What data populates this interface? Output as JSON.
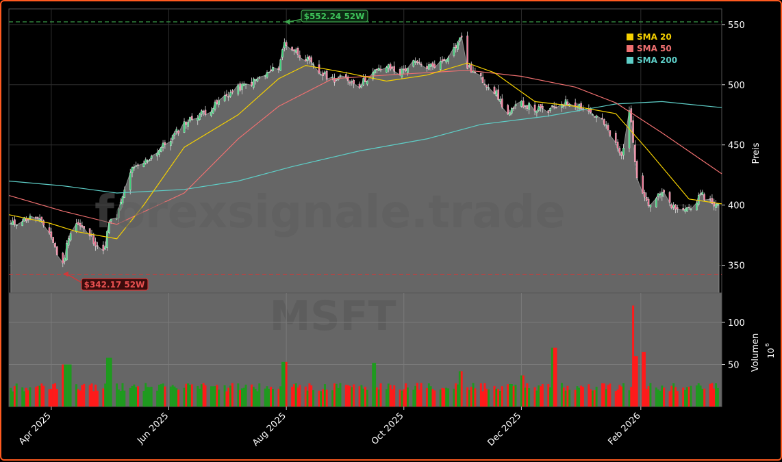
{
  "chart_data": {
    "type": "candlestick",
    "ticker": "MSFT",
    "watermark": "forexsignale.trade",
    "ylabel_price": "Preis",
    "ylabel_volume": "Volumen",
    "volume_exponent_base": "10",
    "volume_exponent": "6",
    "price_range": [
      327,
      563
    ],
    "price_ticks": [
      350,
      400,
      450,
      500,
      550
    ],
    "volume_range": [
      0,
      135
    ],
    "volume_ticks": [
      50,
      100
    ],
    "date_range": [
      "2025-03-10",
      "2026-03-15"
    ],
    "x_ticks": [
      {
        "date": "2025-04-01",
        "label": "Apr 2025"
      },
      {
        "date": "2025-06-01",
        "label": "Jun 2025"
      },
      {
        "date": "2025-08-01",
        "label": "Aug 2025"
      },
      {
        "date": "2025-10-01",
        "label": "Oct 2025"
      },
      {
        "date": "2025-12-01",
        "label": "Dec 2025"
      },
      {
        "date": "2026-02-01",
        "label": "Feb 2026"
      }
    ],
    "high_52w": {
      "value": 552.24,
      "label": "$552.24 52W",
      "date": "2025-07-31"
    },
    "low_52w": {
      "value": 342.17,
      "label": "$342.17 52W",
      "date": "2025-04-07"
    },
    "legend": [
      {
        "label": "SMA 20",
        "color": "#f5d000"
      },
      {
        "label": "SMA 50",
        "color": "#f07070"
      },
      {
        "label": "SMA 200",
        "color": "#5ecfc8"
      }
    ],
    "close_path": [
      [
        "2025-03-10",
        383
      ],
      [
        "2025-03-17",
        388
      ],
      [
        "2025-03-24",
        390
      ],
      [
        "2025-03-31",
        378
      ],
      [
        "2025-04-04",
        360
      ],
      [
        "2025-04-07",
        350
      ],
      [
        "2025-04-10",
        375
      ],
      [
        "2025-04-14",
        385
      ],
      [
        "2025-04-21",
        375
      ],
      [
        "2025-04-28",
        360
      ],
      [
        "2025-05-01",
        385
      ],
      [
        "2025-05-05",
        390
      ],
      [
        "2025-05-12",
        428
      ],
      [
        "2025-05-19",
        435
      ],
      [
        "2025-05-26",
        445
      ],
      [
        "2025-06-02",
        455
      ],
      [
        "2025-06-09",
        468
      ],
      [
        "2025-06-16",
        475
      ],
      [
        "2025-06-23",
        480
      ],
      [
        "2025-06-30",
        490
      ],
      [
        "2025-07-07",
        497
      ],
      [
        "2025-07-14",
        502
      ],
      [
        "2025-07-21",
        508
      ],
      [
        "2025-07-28",
        515
      ],
      [
        "2025-07-31",
        535
      ],
      [
        "2025-08-04",
        530
      ],
      [
        "2025-08-11",
        522
      ],
      [
        "2025-08-18",
        510
      ],
      [
        "2025-08-25",
        505
      ],
      [
        "2025-09-01",
        505
      ],
      [
        "2025-09-08",
        500
      ],
      [
        "2025-09-15",
        510
      ],
      [
        "2025-09-22",
        515
      ],
      [
        "2025-09-29",
        510
      ],
      [
        "2025-10-06",
        518
      ],
      [
        "2025-10-13",
        515
      ],
      [
        "2025-10-20",
        518
      ],
      [
        "2025-10-27",
        530
      ],
      [
        "2025-10-31",
        540
      ],
      [
        "2025-11-03",
        515
      ],
      [
        "2025-11-10",
        505
      ],
      [
        "2025-11-17",
        495
      ],
      [
        "2025-11-24",
        475
      ],
      [
        "2025-12-01",
        485
      ],
      [
        "2025-12-08",
        480
      ],
      [
        "2025-12-15",
        478
      ],
      [
        "2025-12-22",
        485
      ],
      [
        "2025-12-29",
        485
      ],
      [
        "2026-01-05",
        478
      ],
      [
        "2026-01-12",
        470
      ],
      [
        "2026-01-19",
        450
      ],
      [
        "2026-01-22",
        440
      ],
      [
        "2026-01-26",
        480
      ],
      [
        "2026-01-30",
        425
      ],
      [
        "2026-02-05",
        400
      ],
      [
        "2026-02-12",
        410
      ],
      [
        "2026-02-19",
        395
      ],
      [
        "2026-02-26",
        398
      ],
      [
        "2026-03-05",
        408
      ],
      [
        "2026-03-12",
        400
      ]
    ],
    "sma20": [
      [
        "2025-03-10",
        392
      ],
      [
        "2025-03-31",
        385
      ],
      [
        "2025-04-14",
        378
      ],
      [
        "2025-05-05",
        372
      ],
      [
        "2025-05-19",
        400
      ],
      [
        "2025-06-09",
        448
      ],
      [
        "2025-07-07",
        475
      ],
      [
        "2025-07-28",
        505
      ],
      [
        "2025-08-11",
        516
      ],
      [
        "2025-09-01",
        510
      ],
      [
        "2025-09-22",
        503
      ],
      [
        "2025-10-13",
        508
      ],
      [
        "2025-11-03",
        518
      ],
      [
        "2025-11-17",
        510
      ],
      [
        "2025-12-08",
        486
      ],
      [
        "2025-12-29",
        482
      ],
      [
        "2026-01-19",
        476
      ],
      [
        "2026-02-05",
        445
      ],
      [
        "2026-02-26",
        405
      ],
      [
        "2026-03-15",
        401
      ]
    ],
    "sma50": [
      [
        "2025-03-10",
        408
      ],
      [
        "2025-04-07",
        395
      ],
      [
        "2025-05-05",
        384
      ],
      [
        "2025-06-09",
        410
      ],
      [
        "2025-07-07",
        455
      ],
      [
        "2025-07-28",
        482
      ],
      [
        "2025-08-25",
        505
      ],
      [
        "2025-09-22",
        508
      ],
      [
        "2025-10-13",
        510
      ],
      [
        "2025-11-03",
        512
      ],
      [
        "2025-12-01",
        507
      ],
      [
        "2025-12-29",
        498
      ],
      [
        "2026-01-19",
        485
      ],
      [
        "2026-02-12",
        460
      ],
      [
        "2026-03-15",
        426
      ]
    ],
    "sma200": [
      [
        "2025-03-10",
        420
      ],
      [
        "2025-04-07",
        416
      ],
      [
        "2025-05-05",
        410
      ],
      [
        "2025-06-09",
        413
      ],
      [
        "2025-07-07",
        420
      ],
      [
        "2025-08-04",
        432
      ],
      [
        "2025-09-08",
        445
      ],
      [
        "2025-10-13",
        455
      ],
      [
        "2025-11-10",
        467
      ],
      [
        "2025-12-15",
        474
      ],
      [
        "2026-01-19",
        484
      ],
      [
        "2026-02-12",
        486
      ],
      [
        "2026-03-15",
        481
      ]
    ],
    "volume_spikes": [
      [
        "2025-04-07",
        50
      ],
      [
        "2025-04-10",
        50
      ],
      [
        "2025-05-01",
        58
      ],
      [
        "2025-07-31",
        53
      ],
      [
        "2025-09-15",
        52
      ],
      [
        "2025-10-31",
        42
      ],
      [
        "2025-12-01",
        37
      ],
      [
        "2025-12-18",
        70
      ],
      [
        "2026-01-29",
        120
      ],
      [
        "2026-01-30",
        60
      ],
      [
        "2026-02-02",
        65
      ]
    ]
  }
}
